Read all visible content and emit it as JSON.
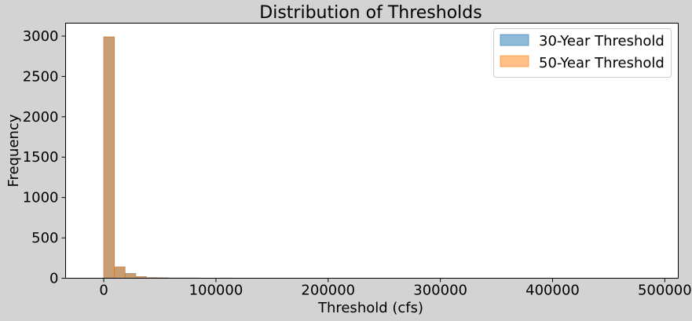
{
  "chart_data": {
    "type": "histogram",
    "title": "Distribution of Thresholds",
    "xlabel": "Threshold (cfs)",
    "ylabel": "Frequency",
    "xlim": [
      -34000,
      512000
    ],
    "ylim": [
      0,
      3160
    ],
    "x_ticks": [
      0,
      100000,
      200000,
      300000,
      400000,
      500000
    ],
    "y_ticks": [
      0,
      500,
      1000,
      1500,
      2000,
      2500,
      3000
    ],
    "legend_position": "top-right",
    "bin_width": 9500,
    "series": [
      {
        "name": "30-Year Threshold",
        "color": "#1f77b4",
        "bins": [
          {
            "x0": 0,
            "x1": 9500,
            "count": 2990
          },
          {
            "x0": 9500,
            "x1": 19000,
            "count": 140
          },
          {
            "x0": 19000,
            "x1": 28500,
            "count": 60
          },
          {
            "x0": 28500,
            "x1": 38000,
            "count": 20
          },
          {
            "x0": 38000,
            "x1": 47500,
            "count": 8
          },
          {
            "x0": 47500,
            "x1": 57000,
            "count": 6
          },
          {
            "x0": 57000,
            "x1": 66500,
            "count": 4
          },
          {
            "x0": 66500,
            "x1": 76000,
            "count": 3
          },
          {
            "x0": 76000,
            "x1": 85500,
            "count": 3
          }
        ]
      },
      {
        "name": "50-Year Threshold",
        "color": "#ff7f0e",
        "bins": [
          {
            "x0": 0,
            "x1": 9500,
            "count": 2990
          },
          {
            "x0": 9500,
            "x1": 19000,
            "count": 140
          },
          {
            "x0": 19000,
            "x1": 28500,
            "count": 55
          },
          {
            "x0": 28500,
            "x1": 38000,
            "count": 18
          },
          {
            "x0": 38000,
            "x1": 47500,
            "count": 7
          },
          {
            "x0": 47500,
            "x1": 57000,
            "count": 5
          },
          {
            "x0": 66500,
            "x1": 76000,
            "count": 3
          },
          {
            "x0": 76000,
            "x1": 85500,
            "count": 2
          },
          {
            "x0": 104500,
            "x1": 114000,
            "count": 3
          },
          {
            "x0": 294500,
            "x1": 304000,
            "count": 2
          }
        ]
      }
    ]
  }
}
